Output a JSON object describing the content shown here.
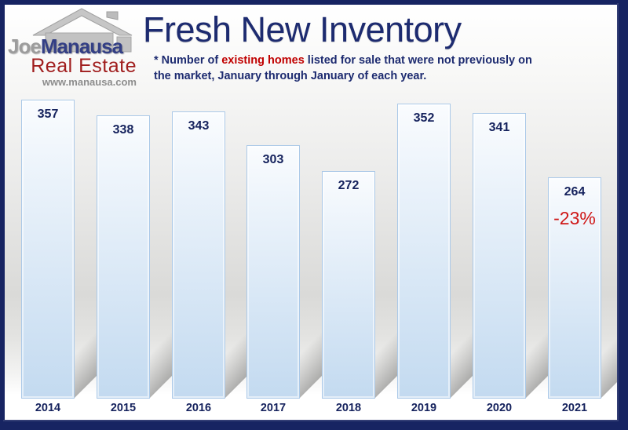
{
  "header": {
    "title": "Fresh New Inventory",
    "subtitle": {
      "prefix": "* Number of ",
      "highlight": "existing homes",
      "suffix": " listed for sale that were not previously on",
      "line2": "the market, January through January of each year."
    }
  },
  "logo": {
    "name_first": "Joe",
    "name_last": "Manausa",
    "tagline": "Real Estate",
    "website": "www.manausa.com"
  },
  "chart_data": {
    "type": "bar",
    "title": "Fresh New Inventory",
    "categories": [
      "2014",
      "2015",
      "2016",
      "2017",
      "2018",
      "2019",
      "2020",
      "2021"
    ],
    "values": [
      357,
      338,
      343,
      303,
      272,
      352,
      341,
      264
    ],
    "annotations": [
      {
        "category": "2021",
        "label": "-23%"
      }
    ],
    "value_labels_position": "inside-top",
    "ylim": [
      0,
      380
    ],
    "grid": false,
    "legend": false
  },
  "colors": {
    "frame_navy": "#172462",
    "title_navy": "#1d2b70",
    "label_navy": "#15225d",
    "highlight_red": "#c00000",
    "annotation_red": "#cf1717",
    "bar_top": "#fafcfe",
    "bar_bottom": "#c3daf0",
    "bar_border": "#abc9e8",
    "logo_gray": "#9c9c9c",
    "logo_navy": "#333f85",
    "logo_red": "#a01d1d",
    "logo_url_gray": "#8d8d8d"
  }
}
